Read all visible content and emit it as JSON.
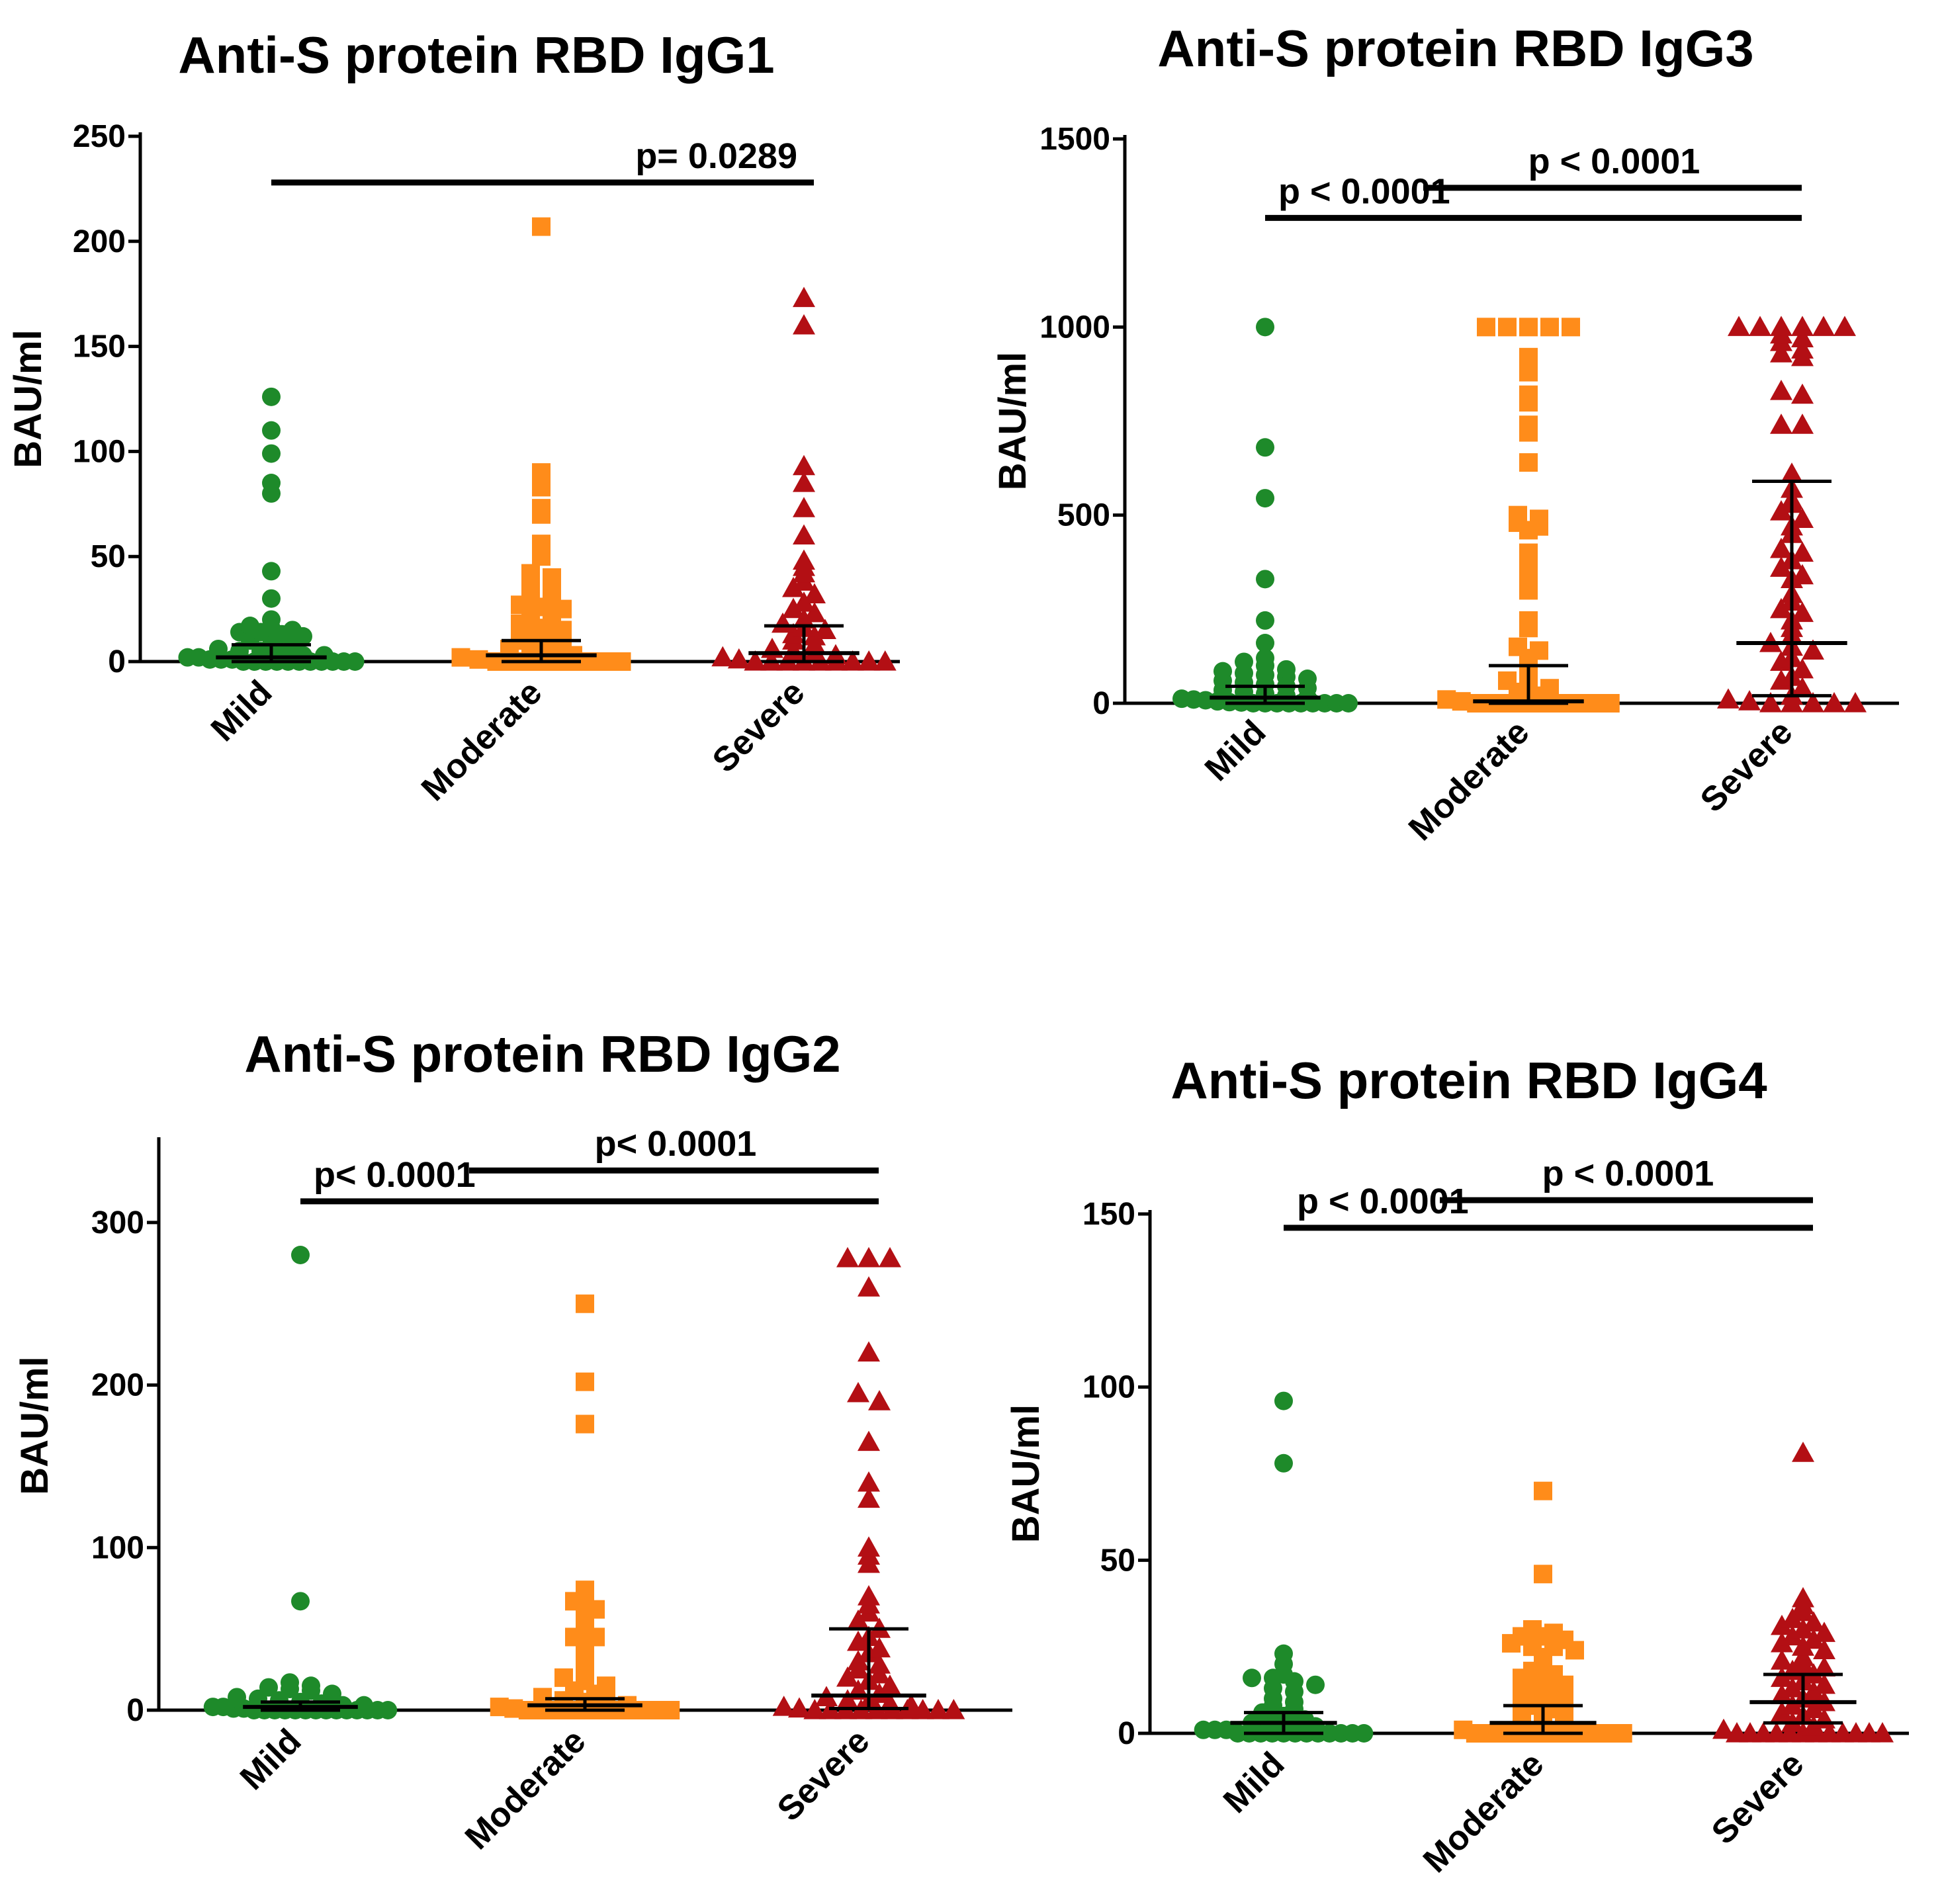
{
  "colors": {
    "Mild": "#1e8a2a",
    "Moderate": "#ff8c1a",
    "Severe": "#b30f14",
    "axis": "#000000"
  },
  "chart_data": [
    {
      "type": "scatter",
      "title": "Anti-S protein RBD IgG1",
      "ylabel": "BAU/ml",
      "xlabel": "",
      "ylim": [
        0,
        250
      ],
      "yticks": [
        0,
        50,
        100,
        150,
        200,
        250
      ],
      "categories": [
        "Mild",
        "Moderate",
        "Severe"
      ],
      "series": [
        {
          "name": "Mild",
          "marker": "circle",
          "median": 2,
          "iqr": [
            0,
            8
          ],
          "values": [
            126,
            110,
            99,
            85,
            80,
            43,
            30,
            20,
            17,
            16,
            15,
            14,
            14,
            13,
            12,
            10,
            8,
            7,
            6,
            5,
            5,
            4,
            3,
            3,
            2,
            2,
            1,
            1,
            1,
            0,
            0,
            0,
            0,
            0,
            0,
            0,
            0,
            0,
            0,
            0
          ]
        },
        {
          "name": "Moderate",
          "marker": "square",
          "median": 3,
          "iqr": [
            0,
            10
          ],
          "values": [
            207,
            90,
            83,
            73,
            70,
            56,
            50,
            42,
            40,
            38,
            36,
            35,
            33,
            30,
            28,
            27,
            26,
            25,
            22,
            20,
            18,
            16,
            15,
            14,
            12,
            10,
            9,
            8,
            6,
            5,
            4,
            3,
            2,
            1,
            0,
            0,
            0,
            0,
            0,
            0,
            0,
            0
          ]
        },
        {
          "name": "Severe",
          "marker": "triangle",
          "median": 4,
          "iqr": [
            0,
            17
          ],
          "values": [
            173,
            160,
            93,
            85,
            73,
            60,
            48,
            45,
            42,
            38,
            35,
            32,
            28,
            25,
            23,
            20,
            18,
            16,
            15,
            13,
            12,
            10,
            8,
            6,
            5,
            4,
            3,
            2,
            1,
            0,
            0,
            0,
            0,
            0,
            0,
            0,
            0,
            0
          ]
        }
      ],
      "comparisons": [
        {
          "from": "Mild",
          "to": "Severe",
          "label": "p= 0.0289",
          "y": 228
        }
      ]
    },
    {
      "type": "scatter",
      "title": "Anti-S protein RBD IgG3",
      "ylabel": "BAU/ml",
      "xlabel": "",
      "ylim": [
        0,
        1500
      ],
      "yticks": [
        0,
        500,
        1000,
        1500
      ],
      "categories": [
        "Mild",
        "Moderate",
        "Severe"
      ],
      "series": [
        {
          "name": "Mild",
          "marker": "circle",
          "median": 15,
          "iqr": [
            0,
            45
          ],
          "values": [
            1000,
            680,
            545,
            330,
            220,
            160,
            120,
            110,
            100,
            90,
            85,
            80,
            75,
            70,
            65,
            60,
            55,
            50,
            45,
            40,
            35,
            30,
            25,
            20,
            15,
            12,
            10,
            8,
            5,
            3,
            2,
            0,
            0,
            0,
            0,
            0,
            0,
            0,
            0,
            0
          ]
        },
        {
          "name": "Moderate",
          "marker": "square",
          "median": 5,
          "iqr": [
            0,
            100
          ],
          "values": [
            1000,
            1000,
            1000,
            1000,
            1000,
            920,
            880,
            820,
            800,
            740,
            720,
            640,
            500,
            490,
            480,
            470,
            460,
            400,
            360,
            330,
            300,
            220,
            200,
            150,
            140,
            120,
            100,
            80,
            60,
            50,
            40,
            30,
            20,
            10,
            5,
            0,
            0,
            0,
            0,
            0,
            0,
            0,
            0,
            0,
            0
          ]
        },
        {
          "name": "Severe",
          "marker": "triangle",
          "median": 160,
          "iqr": [
            20,
            590
          ],
          "values": [
            1000,
            1000,
            1000,
            1000,
            1000,
            1000,
            980,
            970,
            960,
            940,
            930,
            920,
            830,
            820,
            740,
            740,
            610,
            570,
            540,
            530,
            510,
            490,
            470,
            450,
            410,
            400,
            380,
            360,
            340,
            330,
            290,
            270,
            250,
            240,
            220,
            200,
            180,
            160,
            150,
            140,
            120,
            110,
            90,
            70,
            60,
            40,
            20,
            10,
            5,
            0,
            0,
            0,
            0,
            0
          ]
        }
      ],
      "comparisons": [
        {
          "from": "Mild",
          "to": "Severe",
          "label": "p < 0.0001",
          "y": 1290
        },
        {
          "from": "Moderate",
          "to": "Severe",
          "label": "p < 0.0001",
          "y": 1370
        }
      ]
    },
    {
      "type": "scatter",
      "title": "Anti-S protein RBD IgG2",
      "ylabel": "BAU/ml",
      "xlabel": "",
      "ylim": [
        0,
        350
      ],
      "yticks": [
        0,
        100,
        200,
        300
      ],
      "categories": [
        "Mild",
        "Moderate",
        "Severe"
      ],
      "series": [
        {
          "name": "Mild",
          "marker": "circle",
          "median": 2,
          "iqr": [
            0,
            5
          ],
          "values": [
            280,
            67,
            17,
            15,
            14,
            13,
            12,
            10,
            8,
            7,
            6,
            5,
            4,
            3,
            3,
            2,
            2,
            1,
            1,
            0,
            0,
            0,
            0,
            0,
            0,
            0,
            0,
            0,
            0,
            0,
            0,
            0,
            0
          ]
        },
        {
          "name": "Moderate",
          "marker": "square",
          "median": 3,
          "iqr": [
            0,
            7
          ],
          "values": [
            250,
            202,
            176,
            74,
            68,
            67,
            62,
            60,
            50,
            45,
            45,
            40,
            30,
            25,
            20,
            18,
            15,
            12,
            10,
            8,
            6,
            5,
            4,
            3,
            2,
            1,
            0,
            0,
            0,
            0,
            0,
            0,
            0,
            0,
            0,
            0,
            0
          ]
        },
        {
          "name": "Severe",
          "marker": "triangle",
          "median": 9,
          "iqr": [
            1,
            50
          ],
          "values": [
            278,
            278,
            278,
            260,
            220,
            195,
            190,
            165,
            140,
            130,
            100,
            95,
            90,
            70,
            65,
            60,
            55,
            50,
            45,
            42,
            38,
            35,
            30,
            28,
            25,
            22,
            20,
            18,
            15,
            12,
            10,
            8,
            6,
            5,
            4,
            3,
            2,
            1,
            0,
            0,
            0,
            0,
            0,
            0,
            0,
            0,
            0,
            0
          ]
        }
      ],
      "comparisons": [
        {
          "from": "Mild",
          "to": "Severe",
          "label": "p< 0.0001",
          "y": 313
        },
        {
          "from": "Moderate",
          "to": "Severe",
          "label": "p< 0.0001",
          "y": 332
        }
      ]
    },
    {
      "type": "scatter",
      "title": "Anti-S protein RBD IgG4",
      "ylabel": "BAU/ml",
      "xlabel": "",
      "ylim": [
        0,
        150
      ],
      "yticks": [
        0,
        50,
        100,
        150
      ],
      "categories": [
        "Mild",
        "Moderate",
        "Severe"
      ],
      "series": [
        {
          "name": "Mild",
          "marker": "circle",
          "median": 3,
          "iqr": [
            0,
            6
          ],
          "values": [
            96,
            78,
            23,
            20,
            17,
            16,
            16,
            15,
            14,
            13,
            12,
            10,
            9,
            8,
            7,
            6,
            5,
            4,
            3,
            3,
            2,
            2,
            1,
            1,
            1,
            0,
            0,
            0,
            0,
            0,
            0,
            0,
            0,
            0,
            0,
            0,
            0
          ]
        },
        {
          "name": "Moderate",
          "marker": "square",
          "median": 3,
          "iqr": [
            0,
            8
          ],
          "values": [
            70,
            46,
            30,
            29,
            28,
            28,
            27,
            26,
            25,
            25,
            24,
            22,
            20,
            18,
            17,
            16,
            15,
            14,
            13,
            12,
            11,
            10,
            9,
            8,
            7,
            6,
            5,
            4,
            3,
            2,
            2,
            1,
            0,
            0,
            0,
            0,
            0,
            0,
            0,
            0,
            0,
            0,
            0,
            0,
            0
          ]
        },
        {
          "name": "Severe",
          "marker": "triangle",
          "median": 9,
          "iqr": [
            3,
            17
          ],
          "values": [
            81,
            39,
            37,
            35,
            33,
            32,
            31,
            30,
            29,
            28,
            27,
            26,
            25,
            24,
            22,
            21,
            20,
            19,
            18,
            17,
            16,
            15,
            14,
            13,
            12,
            11,
            10,
            9,
            8,
            7,
            6,
            5,
            4,
            3,
            2,
            1,
            0,
            0,
            0,
            0,
            0,
            0,
            0,
            0,
            0,
            0,
            0,
            0
          ]
        }
      ],
      "comparisons": [
        {
          "from": "Mild",
          "to": "Severe",
          "label": "p < 0.0001",
          "y": 146
        },
        {
          "from": "Moderate",
          "to": "Severe",
          "label": "p < 0.0001",
          "y": 154
        }
      ]
    }
  ]
}
